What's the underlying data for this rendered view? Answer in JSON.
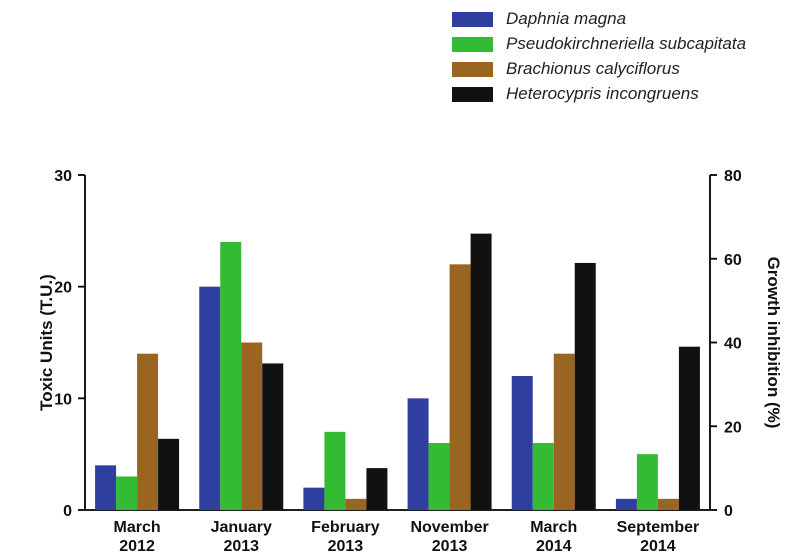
{
  "chart_data": {
    "type": "bar",
    "categories": [
      [
        "March",
        "2012"
      ],
      [
        "January",
        "2013"
      ],
      [
        "February",
        "2013"
      ],
      [
        "November",
        "2013"
      ],
      [
        "March",
        "2014"
      ],
      [
        "September",
        "2014"
      ]
    ],
    "series": [
      {
        "name": "Daphnia magna",
        "color": "#2e3fa0",
        "axis": "left",
        "values": [
          4,
          20,
          2,
          10,
          12,
          1
        ]
      },
      {
        "name": "Pseudokirchneriella subcapitata",
        "color": "#33bb33",
        "axis": "left",
        "values": [
          3,
          24,
          7,
          6,
          6,
          5
        ]
      },
      {
        "name": "Brachionus calyciflorus",
        "color": "#9a6421",
        "axis": "left",
        "values": [
          14,
          15,
          1,
          22,
          14,
          1
        ]
      },
      {
        "name": "Heterocypris incongruens",
        "color": "#111111",
        "axis": "right",
        "values": [
          17,
          35,
          10,
          66,
          59,
          39
        ]
      }
    ],
    "ylabel": "Toxic Units (T.U.)",
    "ylabel_right": "Growth inhibition (%)",
    "ylim": [
      0,
      30
    ],
    "ylim_right": [
      0,
      80
    ],
    "yticks": [
      0,
      10,
      20,
      30
    ],
    "yticks_right": [
      0,
      20,
      40,
      60,
      80
    ],
    "legend_position": "top-right",
    "grid": false
  }
}
